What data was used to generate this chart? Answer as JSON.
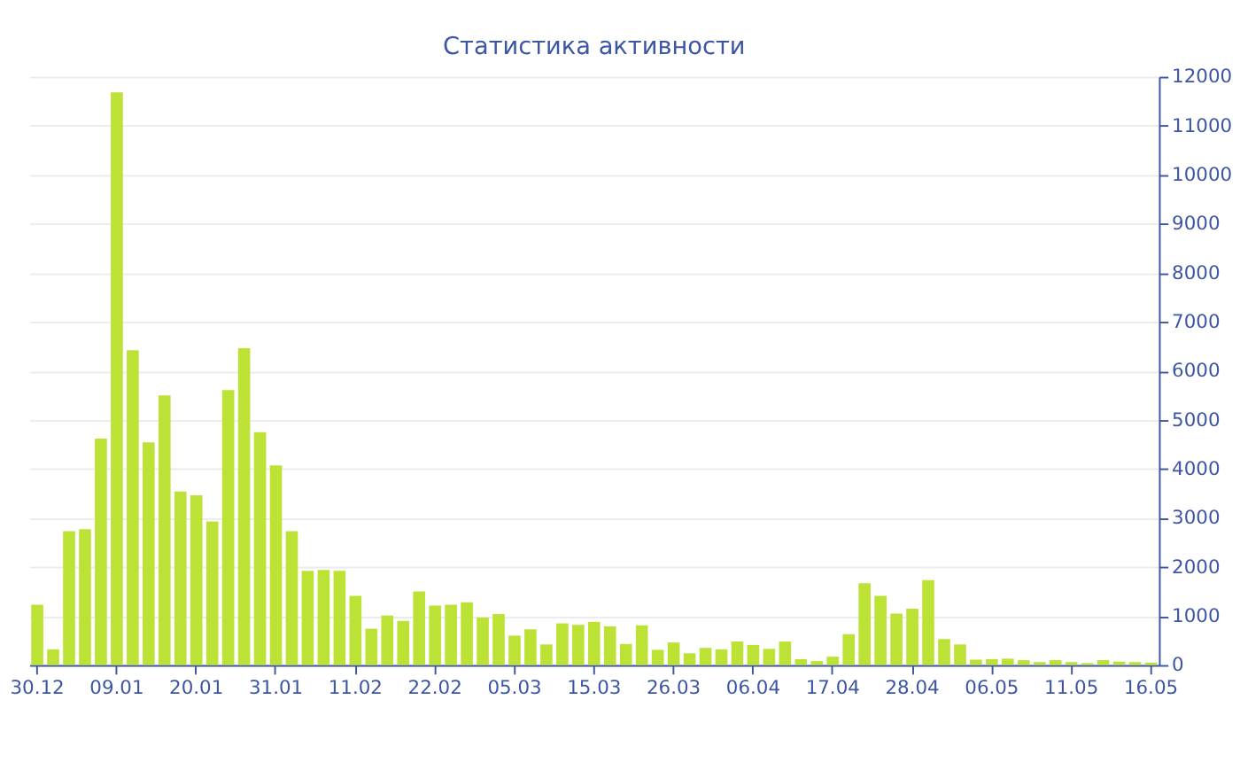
{
  "chart_data": {
    "type": "bar",
    "title": "Статистика активности",
    "categories": [
      "30.12",
      null,
      null,
      null,
      null,
      "09.01",
      null,
      null,
      null,
      null,
      "20.01",
      null,
      null,
      null,
      null,
      "31.01",
      null,
      null,
      null,
      null,
      "11.02",
      null,
      null,
      null,
      null,
      "22.02",
      null,
      null,
      null,
      null,
      "05.03",
      null,
      null,
      null,
      null,
      "15.03",
      null,
      null,
      null,
      null,
      "26.03",
      null,
      null,
      null,
      null,
      "06.04",
      null,
      null,
      null,
      null,
      "17.04",
      null,
      null,
      null,
      null,
      "28.04",
      null,
      null,
      null,
      null,
      "06.05",
      null,
      null,
      null,
      null,
      "11.05",
      null,
      null,
      null,
      null,
      "16.05"
    ],
    "series": [
      {
        "color": "#bde236",
        "values": [
          1230,
          320,
          2730,
          2770,
          4620,
          11680,
          6420,
          4540,
          5500,
          3540,
          3460,
          2930,
          5610,
          6460,
          4750,
          4070,
          2730,
          1920,
          1940,
          1920,
          1410,
          740,
          1010,
          900,
          1500,
          1210,
          1230,
          1280,
          970,
          1040,
          600,
          730,
          420,
          850,
          820,
          880,
          790,
          430,
          810,
          310,
          460,
          240,
          350,
          320,
          480,
          410,
          330,
          480,
          120,
          80,
          170,
          630,
          1670,
          1410,
          1050,
          1150,
          1730,
          530,
          420,
          110,
          120,
          130,
          100,
          60,
          100,
          60,
          40,
          100,
          70,
          60,
          50
        ]
      }
    ],
    "ylim": [
      0,
      12000
    ],
    "yticks": [
      0,
      1000,
      2000,
      3000,
      4000,
      5000,
      6000,
      7000,
      8000,
      9000,
      10000,
      11000,
      12000
    ],
    "grid": "y",
    "legend": false
  }
}
